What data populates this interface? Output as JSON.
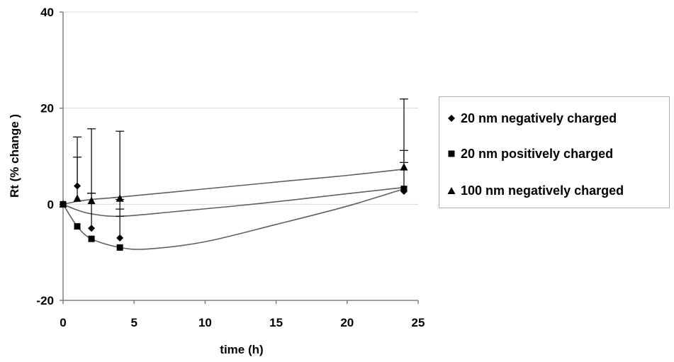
{
  "chart_data": {
    "type": "scatter",
    "xlabel": "time (h)",
    "ylabel": "Rt (% change )",
    "xlim": [
      0,
      25
    ],
    "ylim": [
      -20,
      40
    ],
    "xticks": [
      "0",
      "5",
      "10",
      "15",
      "20",
      "25"
    ],
    "yticks": [
      "-20",
      "0",
      "20",
      "40"
    ],
    "grid": "horizontal",
    "legend_position": "right",
    "series": [
      {
        "name": "20 nm negatively charged",
        "marker": "diamond",
        "x": [
          0,
          1,
          2,
          4,
          24
        ],
        "y": [
          0,
          3.8,
          -5.0,
          -7.0,
          2.7
        ],
        "err_plus": [
          0,
          6.0,
          7.3,
          8.0,
          8.5
        ],
        "err_minus": [
          0,
          0,
          0,
          0,
          0
        ],
        "curve": [
          [
            0,
            0
          ],
          [
            1,
            -1.2
          ],
          [
            2,
            -2
          ],
          [
            4,
            -2.5
          ],
          [
            8,
            -1.5
          ],
          [
            14,
            0.2
          ],
          [
            20,
            2.2
          ],
          [
            24,
            3.5
          ]
        ]
      },
      {
        "name": "20 nm positively charged",
        "marker": "square",
        "x": [
          0,
          1,
          2,
          4,
          24
        ],
        "y": [
          0,
          -4.6,
          -7.2,
          -9.0,
          3.2
        ],
        "err_plus": [
          0,
          0,
          0,
          0,
          0
        ],
        "err_minus": [
          0,
          0,
          0,
          0,
          0
        ],
        "curve": [
          [
            0,
            0
          ],
          [
            1,
            -4.6
          ],
          [
            2,
            -7.2
          ],
          [
            4,
            -9.0
          ],
          [
            6,
            -9.3
          ],
          [
            10,
            -7.8
          ],
          [
            15,
            -4.2
          ],
          [
            20,
            -0.4
          ],
          [
            24,
            3.2
          ]
        ]
      },
      {
        "name": "100 nm negatively charged",
        "marker": "triangle",
        "x": [
          0,
          1,
          2,
          4,
          24
        ],
        "y": [
          0,
          1.2,
          0.7,
          1.2,
          7.7
        ],
        "err_plus": [
          0,
          12.8,
          15.0,
          14.0,
          14.2
        ],
        "err_minus": [
          0,
          0,
          0,
          0,
          0
        ],
        "curve": [
          [
            0,
            0
          ],
          [
            1,
            0.6
          ],
          [
            2,
            1.0
          ],
          [
            4,
            1.5
          ],
          [
            10,
            3.2
          ],
          [
            16,
            4.9
          ],
          [
            20,
            6.0
          ],
          [
            24,
            7.3
          ]
        ]
      }
    ],
    "extra_ticks": [
      {
        "x": 2,
        "y": 2.3
      },
      {
        "x": 4,
        "y": -1.0
      },
      {
        "x": 4,
        "y": -2.5
      },
      {
        "x": 24,
        "y": 8.7
      }
    ]
  },
  "colors": {
    "marker": "#000000",
    "line": "#606060",
    "axis": "#808080",
    "grid": "#d8d8d8"
  }
}
